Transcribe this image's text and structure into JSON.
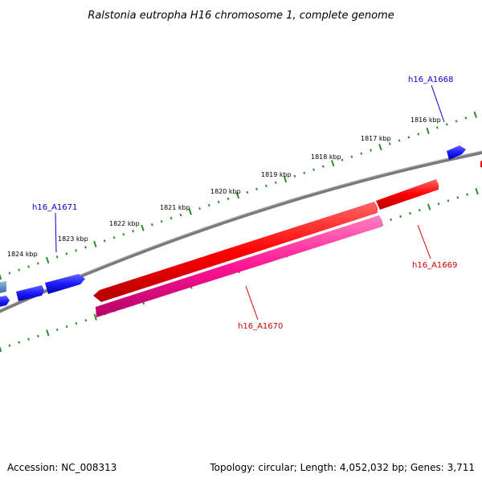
{
  "title": "Ralstonia eutropha H16 chromosome 1, complete genome",
  "footer": {
    "accession": "Accession: NC_008313",
    "topology": "Topology: circular; Length: 4,052,032 bp; Genes: 3,711"
  },
  "ruler": {
    "labels": [
      "1816 kbp",
      "1817 kbp",
      "1818 kbp",
      "1819 kbp",
      "1820 kbp",
      "1821 kbp",
      "1822 kbp",
      "1823 kbp",
      "1824 kbp"
    ]
  },
  "genes": [
    {
      "id": "h16_A1668",
      "label": "h16_A1668",
      "color": "#0000cc",
      "fill": "#1a1aff"
    },
    {
      "id": "h16_A1669",
      "label": "h16_A1669",
      "color": "#cc0000",
      "fill": "#ff0000"
    },
    {
      "id": "h16_A1670",
      "label": "h16_A1670",
      "color": "#cc0000",
      "fill": "#ff1493"
    },
    {
      "id": "h16_A1671",
      "label": "h16_A1671",
      "color": "#0000cc",
      "fill": "#1a1aff"
    }
  ],
  "colors": {
    "backbone": "#808080",
    "ruler": "#2e8b2e",
    "forward_gene": "#1a1aff",
    "reverse_gene": "#ff0000",
    "reverse_gene_2": "#ff1493"
  }
}
